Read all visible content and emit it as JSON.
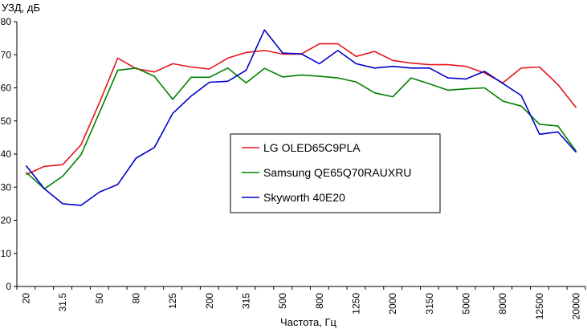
{
  "chart_data": {
    "type": "line",
    "title": "",
    "ylabel": "УЗД, дБ",
    "xlabel": "Частота, Гц",
    "ylim": [
      0,
      80
    ],
    "yticks": [
      0,
      10,
      20,
      30,
      40,
      50,
      60,
      70,
      80
    ],
    "grid": false,
    "legend_position": "center",
    "categories": [
      "20",
      "25",
      "31.5",
      "40",
      "50",
      "63",
      "80",
      "100",
      "125",
      "160",
      "200",
      "250",
      "315",
      "400",
      "500",
      "630",
      "800",
      "1000",
      "1250",
      "1600",
      "2000",
      "2500",
      "3150",
      "4000",
      "5000",
      "6300",
      "8000",
      "10000",
      "12500",
      "16000",
      "20000"
    ],
    "tick_labels": [
      "20",
      "31.5",
      "50",
      "80",
      "125",
      "200",
      "315",
      "500",
      "800",
      "1250",
      "2000",
      "3150",
      "5000",
      "8000",
      "12500",
      "20000"
    ],
    "series": [
      {
        "name": "LG OLED65C9PLA",
        "color": "#e8141c",
        "values": [
          33.8,
          36.3,
          36.8,
          42.8,
          55.5,
          69.0,
          65.8,
          64.8,
          67.3,
          66.3,
          65.7,
          69.0,
          70.7,
          71.3,
          70.2,
          70.2,
          73.3,
          73.3,
          69.5,
          71.0,
          68.3,
          67.5,
          67.0,
          67.0,
          66.5,
          64.5,
          61.5,
          66.0,
          66.3,
          61.0,
          54.0
        ]
      },
      {
        "name": "Samsung QE65Q70RAUXRU",
        "color": "#008000",
        "values": [
          34.5,
          29.5,
          33.3,
          39.8,
          52.5,
          65.3,
          66.0,
          63.5,
          56.5,
          63.2,
          63.2,
          66.0,
          61.5,
          65.9,
          63.3,
          63.9,
          63.5,
          63.0,
          61.8,
          58.5,
          57.3,
          63.0,
          61.2,
          59.3,
          59.7,
          60.0,
          56.0,
          54.5,
          49.0,
          48.5,
          40.8
        ]
      },
      {
        "name": "Skyworth 40E20",
        "color": "#0000cc",
        "values": [
          36.5,
          29.5,
          25.0,
          24.5,
          28.5,
          30.8,
          38.8,
          42.0,
          52.3,
          57.5,
          61.7,
          62.0,
          65.3,
          77.5,
          70.5,
          70.3,
          67.3,
          71.3,
          67.3,
          66.0,
          66.5,
          66.0,
          66.0,
          63.0,
          62.7,
          65.0,
          61.3,
          57.7,
          46.0,
          46.7,
          40.5
        ]
      }
    ]
  }
}
